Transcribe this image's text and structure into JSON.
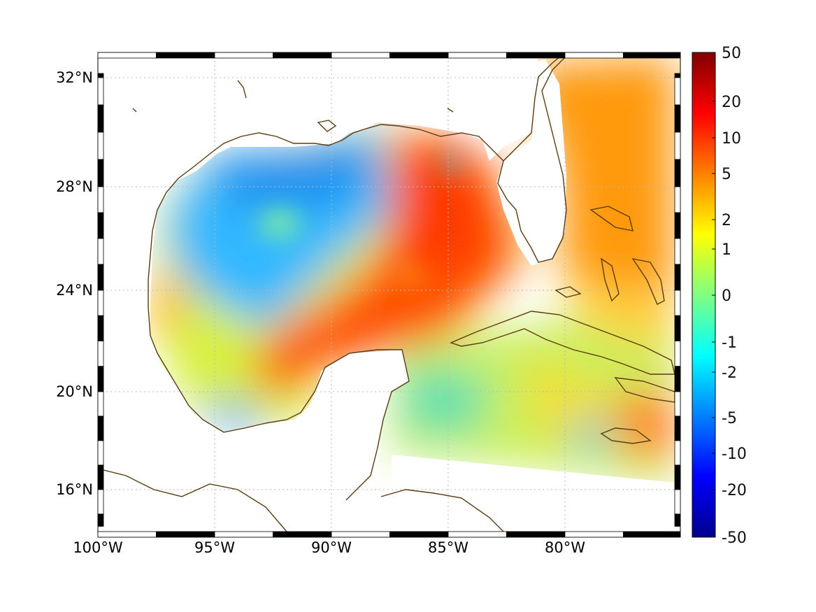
{
  "map": {
    "lon_range": [
      -100,
      -75
    ],
    "lat_range": [
      14.5,
      32.8
    ],
    "lon_ticks": [
      {
        "value": -100,
        "label": "100°W"
      },
      {
        "value": -95,
        "label": "95°W"
      },
      {
        "value": -90,
        "label": "90°W"
      },
      {
        "value": -85,
        "label": "85°W"
      },
      {
        "value": -80,
        "label": "80°W"
      }
    ],
    "lat_ticks": [
      {
        "value": 32,
        "label": "32°N"
      },
      {
        "value": 28,
        "label": "28°N"
      },
      {
        "value": 24,
        "label": "24°N"
      },
      {
        "value": 20,
        "label": "20°N"
      },
      {
        "value": 16,
        "label": "16°N"
      }
    ],
    "grid": true,
    "frame": "black-white checkered border",
    "coastline_color": "#5a3b10"
  },
  "colorbar": {
    "scale": "symmetric log-like",
    "ticks": [
      {
        "value": 50,
        "label": "50"
      },
      {
        "value": 20,
        "label": "20"
      },
      {
        "value": 10,
        "label": "10"
      },
      {
        "value": 5,
        "label": "5"
      },
      {
        "value": 2,
        "label": "2"
      },
      {
        "value": 1,
        "label": "1"
      },
      {
        "value": 0,
        "label": "0"
      },
      {
        "value": -1,
        "label": "-1"
      },
      {
        "value": -2,
        "label": "-2"
      },
      {
        "value": -5,
        "label": "-5"
      },
      {
        "value": -10,
        "label": "-10"
      },
      {
        "value": -20,
        "label": "-20"
      },
      {
        "value": -50,
        "label": "-50"
      }
    ],
    "colormap": "jet",
    "colors": [
      "#00008f",
      "#0000ff",
      "#0080ff",
      "#00ffff",
      "#80ff80",
      "#ffff00",
      "#ff8000",
      "#ff0000",
      "#800000"
    ]
  }
}
